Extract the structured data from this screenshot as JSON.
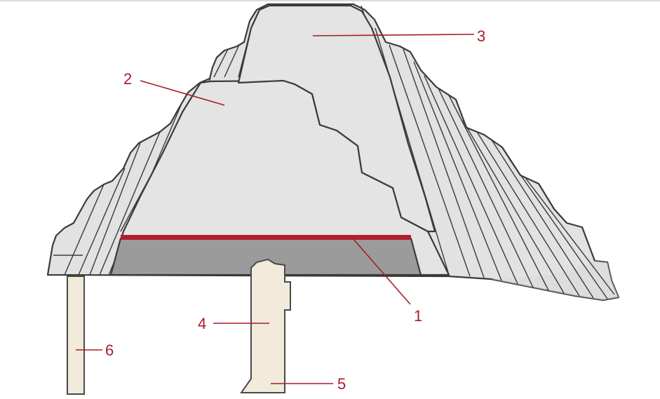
{
  "colors": {
    "outer_slope": "#e2e2e2",
    "inner_core": "#e4e4e4",
    "base_band": "#9b9b9b",
    "red_line": "#b11f2e",
    "pillar": "#f2eadb",
    "outline": "#3a3a3a",
    "callout": "#a51d2d",
    "top_rule": "#cfcfcf"
  },
  "labels": {
    "l1": "1",
    "l2": "2",
    "l3": "3",
    "l4": "4",
    "l5": "5",
    "l6": "6"
  }
}
